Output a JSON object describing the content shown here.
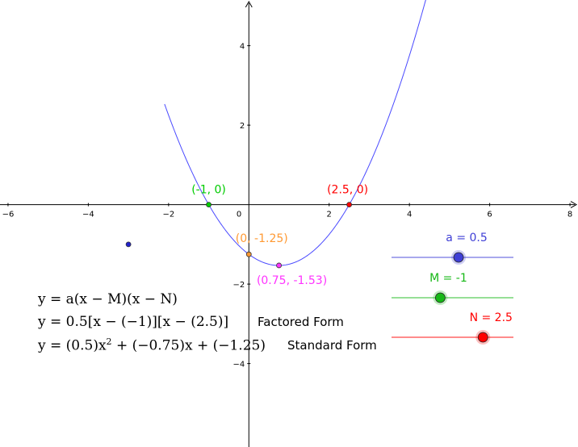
{
  "chart_data": {
    "type": "line",
    "xlim": [
      -6.2,
      8.2
    ],
    "ylim": [
      -6.1,
      5.15
    ],
    "x_ticks": [
      -6,
      -4,
      -2,
      2,
      4,
      6,
      8
    ],
    "y_ticks": [
      -4,
      -2,
      2,
      4
    ],
    "origin_label": "0",
    "grid": false,
    "curve": {
      "a": 0.5,
      "M": -1,
      "N": 2.5,
      "color": "#4a4aff"
    },
    "points": [
      {
        "label": "(-1, 0)",
        "x": -1,
        "y": 0,
        "color": "#00cc00"
      },
      {
        "label": "(2.5, 0)",
        "x": 2.5,
        "y": 0,
        "color": "#ff0000"
      },
      {
        "label": "(0, -1.25)",
        "x": 0,
        "y": -1.25,
        "color": "#ff9933"
      },
      {
        "label": "(0.75, -1.53)",
        "x": 0.75,
        "y": -1.53,
        "color": "#ff33ff"
      },
      {
        "label": "",
        "x": -3,
        "y": -1,
        "color": "#2222cc"
      }
    ]
  },
  "sliders": [
    {
      "label": "a = 0.5",
      "color": "#3f3fd6",
      "fraction": 0.55
    },
    {
      "label": "M = -1",
      "color": "#16b816",
      "fraction": 0.4
    },
    {
      "label": "N = 2.5",
      "color": "#ff0000",
      "fraction": 0.75
    }
  ],
  "equations": {
    "general": "y = a(x − M)(x − N)",
    "factored": "y = 0.5[x − (−1)][x − (2.5)]",
    "factored_label": "Factored Form",
    "standard_pre": "y = (0.5)x",
    "standard_exp": "2",
    "standard_post": " + (−0.75)x + (−1.25)",
    "standard_label": "Standard Form"
  }
}
